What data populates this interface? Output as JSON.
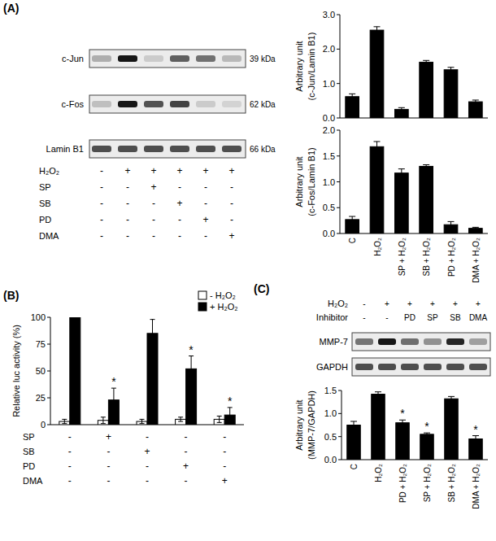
{
  "panel_labels": [
    "(A)",
    "(B)",
    "(C)"
  ],
  "blot_a": {
    "rows": [
      {
        "label": "c-Jun",
        "size": "39 kDa"
      },
      {
        "label": "c-Fos",
        "size": "62 kDa"
      },
      {
        "label": "Lamin B1",
        "size": "66 kDa"
      }
    ],
    "treatments": [
      {
        "label": "H₂O₂",
        "signs": [
          "-",
          "+",
          "+",
          "+",
          "+",
          "+"
        ]
      },
      {
        "label": "SP",
        "signs": [
          "-",
          "-",
          "+",
          "-",
          "-",
          "-"
        ]
      },
      {
        "label": "SB",
        "signs": [
          "-",
          "-",
          "-",
          "+",
          "-",
          "-"
        ]
      },
      {
        "label": "PD",
        "signs": [
          "-",
          "-",
          "-",
          "-",
          "+",
          "-"
        ]
      },
      {
        "label": "DMA",
        "signs": [
          "-",
          "-",
          "-",
          "-",
          "-",
          "+"
        ]
      }
    ]
  },
  "treatments_b": [
    {
      "label": "SP",
      "signs": [
        "-",
        "+",
        "-",
        "-",
        "-"
      ]
    },
    {
      "label": "SB",
      "signs": [
        "-",
        "-",
        "+",
        "-",
        "-"
      ]
    },
    {
      "label": "PD",
      "signs": [
        "-",
        "-",
        "-",
        "+",
        "-"
      ]
    },
    {
      "label": "DMA",
      "signs": [
        "-",
        "-",
        "-",
        "-",
        "+"
      ]
    }
  ],
  "blot_c": {
    "rows": [
      {
        "label": "MMP-7"
      },
      {
        "label": "GAPDH"
      }
    ],
    "treatments": [
      {
        "label": "H₂O₂",
        "signs": [
          "-",
          "+",
          "+",
          "+",
          "+",
          "+"
        ]
      },
      {
        "label": "Inhibitor",
        "signs": [
          "-",
          "-",
          "PD",
          "SP",
          "SB",
          "DMA"
        ]
      }
    ]
  },
  "chart_data": [
    {
      "type": "bar",
      "y_label": [
        "Arbitrary unit",
        "(c-Jun/Lamin B1)"
      ],
      "categories": [
        null,
        null,
        null,
        null,
        null,
        null
      ],
      "values": [
        0.62,
        2.55,
        0.25,
        1.62,
        1.4,
        0.47
      ],
      "errors": [
        0.08,
        0.1,
        0.05,
        0.05,
        0.07,
        0.05
      ],
      "color": "#000000",
      "ylim": [
        0,
        3
      ],
      "yticks": [
        {
          "value": 0,
          "label": "0.0"
        },
        {
          "value": 1,
          "label": "1.0"
        },
        {
          "value": 2,
          "label": "2.0"
        },
        {
          "value": 3,
          "label": "3.0"
        }
      ],
      "grid": false,
      "tick_labels": "y"
    },
    {
      "type": "bar",
      "y_label": [
        "Arbitrary unit",
        "(c-Fos/Lamin B1)"
      ],
      "categories": [
        "C",
        "H₂O₂",
        "SP + H₂O₂",
        "SB + H₂O₂",
        "PD + H₂O₂",
        "DMA + H₂O₂"
      ],
      "values": [
        0.27,
        1.68,
        1.17,
        1.3,
        0.17,
        0.1
      ],
      "errors": [
        0.06,
        0.1,
        0.08,
        0.03,
        0.06,
        0.02
      ],
      "color": "#000000",
      "ylim": [
        0,
        2
      ],
      "yticks": [
        {
          "value": 0,
          "label": "0.0"
        },
        {
          "value": 0.5,
          "label": "0.5"
        },
        {
          "value": 1,
          "label": "1.0"
        },
        {
          "value": 1.5,
          "label": "1.5"
        },
        {
          "value": 2,
          "label": "2.0"
        }
      ],
      "grid": false
    },
    {
      "type": "bar",
      "y_label": [
        "Relative luc activity (%)"
      ],
      "categories": [
        null,
        null,
        null,
        null,
        null
      ],
      "series": [
        {
          "name": "- H₂O₂",
          "color": "#ffffff",
          "values": [
            3,
            4,
            3,
            5,
            5
          ],
          "errors": [
            2,
            3,
            2,
            2,
            3
          ]
        },
        {
          "name": "+ H₂O₂",
          "color": "#000000",
          "values": [
            100,
            23,
            85,
            52,
            9
          ],
          "errors": [
            0,
            11,
            13,
            12,
            7
          ],
          "significance": [
            null,
            "*",
            null,
            "*",
            "*"
          ]
        }
      ],
      "ylim": [
        0,
        100
      ],
      "yticks": [
        0,
        25,
        50,
        75,
        100
      ],
      "grid": false,
      "legend": "top-right",
      "tick_labels": "y"
    },
    {
      "type": "bar",
      "y_label": [
        "Arbitrary unit",
        "(MMP-7/GAPDH)"
      ],
      "categories": [
        "C",
        "H₂O₂",
        "PD + H₂O₂",
        "SP + H₂O₂",
        "SB + H₂O₂",
        "DMA + H₂O₂"
      ],
      "values": [
        0.75,
        1.42,
        0.8,
        0.55,
        1.32,
        0.45
      ],
      "errors": [
        0.08,
        0.05,
        0.06,
        0.03,
        0.05,
        0.07
      ],
      "significance": [
        null,
        null,
        "*",
        "*",
        null,
        "*"
      ],
      "color": "#000000",
      "ylim": [
        0,
        1.5
      ],
      "yticks": [
        {
          "value": 0,
          "label": "0.0"
        },
        {
          "value": 0.5,
          "label": "0.5"
        },
        {
          "value": 1,
          "label": "1.0"
        },
        {
          "value": 1.5,
          "label": "1.5"
        }
      ],
      "grid": false
    }
  ]
}
